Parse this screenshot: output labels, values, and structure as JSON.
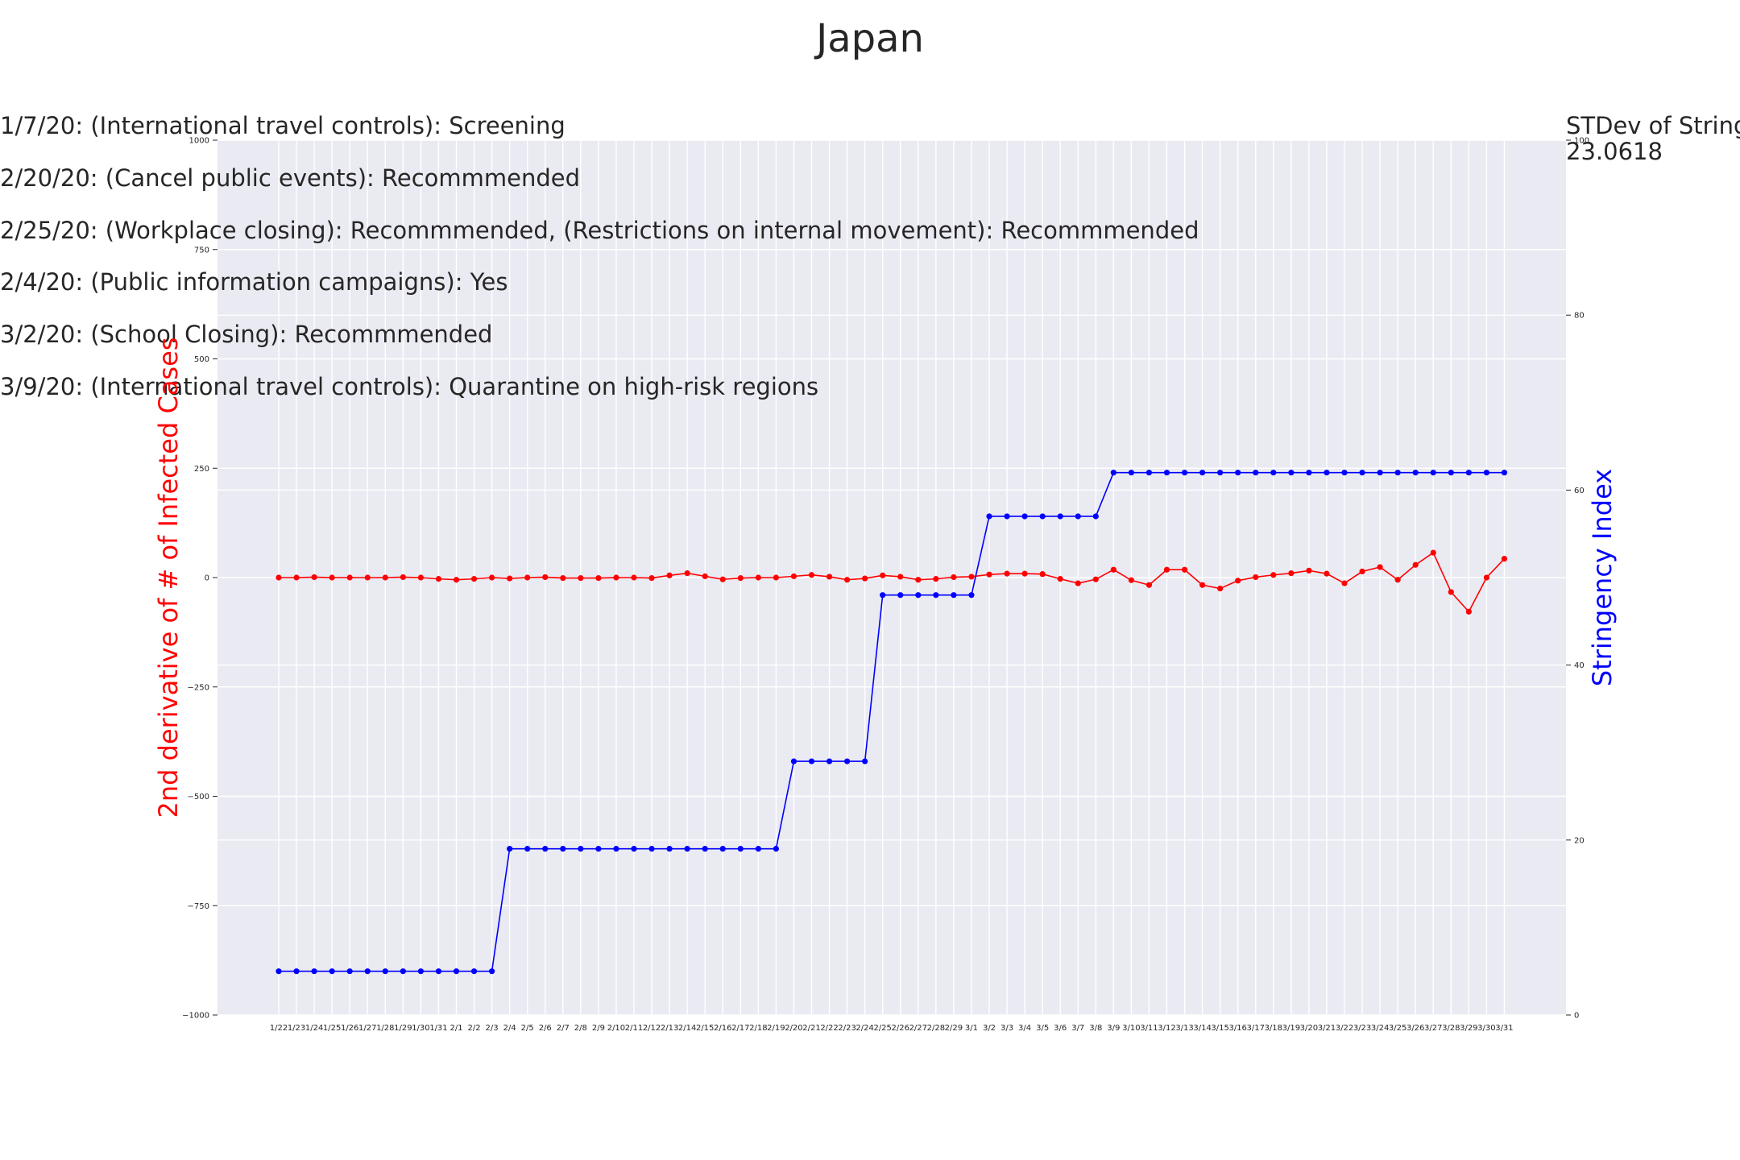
{
  "chart_data": {
    "type": "line",
    "title": "Japan",
    "annotations": [
      "1/7/20: (International travel controls): Screening",
      "2/20/20: (Cancel public events): Recommmended",
      "2/25/20: (Workplace closing): Recommmended, (Restrictions on internal movement): Recommmended",
      "2/4/20: (Public information campaigns): Yes",
      "3/2/20: (School Closing): Recommmended",
      "3/9/20: (International travel controls): Quarantine on high-risk regions"
    ],
    "stdev_label": "STDev of Stringency Index:",
    "stdev_value": "23.0618",
    "ylabel_left": "2nd derivative of # of Infected Cases",
    "ylabel_right": "Stringency Index",
    "ylim_left": [
      -1000,
      1000
    ],
    "ylim_right": [
      0,
      100
    ],
    "yticks_left": [
      "1000",
      "750",
      "500",
      "250",
      "0",
      "−250",
      "−500",
      "−750",
      "−1000"
    ],
    "yticks_right": [
      "100",
      "80",
      "60",
      "40",
      "20",
      "0"
    ],
    "categories": [
      "1/22",
      "1/23",
      "1/24",
      "1/25",
      "1/26",
      "1/27",
      "1/28",
      "1/29",
      "1/30",
      "1/31",
      "2/1",
      "2/2",
      "2/3",
      "2/4",
      "2/5",
      "2/6",
      "2/7",
      "2/8",
      "2/9",
      "2/10",
      "2/11",
      "2/12",
      "2/13",
      "2/14",
      "2/15",
      "2/16",
      "2/17",
      "2/18",
      "2/19",
      "2/20",
      "2/21",
      "2/22",
      "2/23",
      "2/24",
      "2/25",
      "2/26",
      "2/27",
      "2/28",
      "2/29",
      "3/1",
      "3/2",
      "3/3",
      "3/4",
      "3/5",
      "3/6",
      "3/7",
      "3/8",
      "3/9",
      "3/10",
      "3/11",
      "3/12",
      "3/13",
      "3/14",
      "3/15",
      "3/16",
      "3/17",
      "3/18",
      "3/19",
      "3/20",
      "3/21",
      "3/22",
      "3/23",
      "3/24",
      "3/25",
      "3/26",
      "3/27",
      "3/28",
      "3/29",
      "3/30",
      "3/31"
    ],
    "series": [
      {
        "axis": "left",
        "color": "#ff0000",
        "values": [
          0,
          0,
          1,
          0,
          0,
          0,
          0,
          1,
          0,
          -3,
          -5,
          -3,
          0,
          -2,
          0,
          1,
          -1,
          -1,
          -1,
          0,
          0,
          -1,
          5,
          10,
          3,
          -4,
          -1,
          0,
          0,
          3,
          6,
          2,
          -5,
          -2,
          5,
          2,
          -5,
          -3,
          1,
          2,
          7,
          9,
          9,
          8,
          -3,
          -13,
          -4,
          18,
          -6,
          -17,
          18,
          18,
          -17,
          -25,
          -7,
          1,
          6,
          10,
          16,
          9,
          -13,
          14,
          24,
          -5,
          29,
          57,
          -33,
          -78,
          0,
          43
        ]
      },
      {
        "axis": "right",
        "color": "#0000ff",
        "values": [
          5,
          5,
          5,
          5,
          5,
          5,
          5,
          5,
          5,
          5,
          5,
          5,
          5,
          19,
          19,
          19,
          19,
          19,
          19,
          19,
          19,
          19,
          19,
          19,
          19,
          19,
          19,
          19,
          19,
          29,
          29,
          29,
          29,
          29,
          48,
          48,
          48,
          48,
          48,
          48,
          57,
          57,
          57,
          57,
          57,
          57,
          57,
          62,
          62,
          62,
          62,
          62,
          62,
          62,
          62,
          62,
          62,
          62,
          62,
          62,
          62,
          62,
          62,
          62,
          62,
          62,
          62,
          62,
          62,
          62
        ]
      }
    ],
    "grid": true
  }
}
